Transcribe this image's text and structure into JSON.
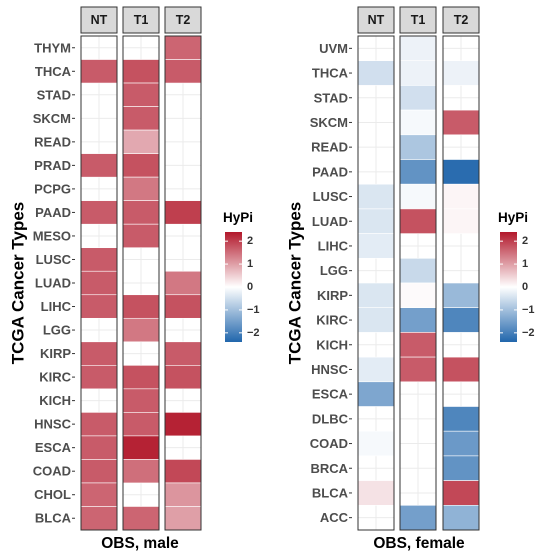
{
  "colors": {
    "low": "#2166ac",
    "mid": "#ffffff",
    "high": "#b2182b"
  },
  "legend": {
    "title": "HyPi",
    "ticks": [
      2,
      1,
      0,
      -1,
      -2
    ],
    "tick_labels": [
      "2",
      "1",
      "0",
      "−1",
      "−2"
    ]
  },
  "chart_data": [
    {
      "type": "heatmap",
      "ylabel": "TCGA Cancer Types",
      "xlabel": "OBS, male",
      "facets": [
        "NT",
        "T1",
        "T2"
      ],
      "categories": [
        "THYM",
        "THCA",
        "STAD",
        "SKCM",
        "READ",
        "PRAD",
        "PCPG",
        "PAAD",
        "MESO",
        "LUSC",
        "LUAD",
        "LIHC",
        "LGG",
        "KIRP",
        "KIRC",
        "KICH",
        "HNSC",
        "ESCA",
        "COAD",
        "CHOL",
        "BLCA"
      ],
      "color_range": [
        -2.4,
        2.4
      ],
      "series": [
        {
          "name": "NT",
          "values": [
            null,
            1.7,
            null,
            null,
            null,
            1.7,
            null,
            1.7,
            null,
            1.7,
            1.7,
            1.7,
            null,
            1.7,
            1.7,
            null,
            1.7,
            1.7,
            1.7,
            1.6,
            1.6
          ]
        },
        {
          "name": "T1",
          "values": [
            null,
            1.8,
            1.7,
            1.7,
            0.9,
            1.8,
            1.4,
            1.7,
            1.7,
            null,
            null,
            1.8,
            1.4,
            null,
            1.8,
            1.7,
            1.7,
            2.3,
            1.5,
            null,
            1.6
          ]
        },
        {
          "name": "T2",
          "values": [
            1.6,
            1.7,
            null,
            null,
            null,
            null,
            null,
            2.0,
            null,
            null,
            1.4,
            1.8,
            null,
            1.7,
            1.8,
            null,
            2.3,
            null,
            1.9,
            1.1,
            1.0
          ]
        }
      ]
    },
    {
      "type": "heatmap",
      "ylabel": "TCGA Cancer Types",
      "xlabel": "OBS, female",
      "facets": [
        "NT",
        "T1",
        "T2"
      ],
      "categories": [
        "UVM",
        "THCA",
        "STAD",
        "SKCM",
        "READ",
        "PAAD",
        "LUSC",
        "LUAD",
        "LIHC",
        "LGG",
        "KIRP",
        "KIRC",
        "KICH",
        "HNSC",
        "ESCA",
        "DLBC",
        "COAD",
        "BRCA",
        "BLCA",
        "ACC"
      ],
      "color_range": [
        -2.4,
        2.4
      ],
      "series": [
        {
          "name": "NT",
          "values": [
            null,
            -0.5,
            null,
            null,
            null,
            null,
            -0.4,
            -0.4,
            -0.3,
            null,
            -0.4,
            -0.4,
            null,
            -0.3,
            -1.4,
            null,
            -0.1,
            null,
            0.3,
            null
          ]
        },
        {
          "name": "T1",
          "values": [
            -0.2,
            -0.2,
            -0.5,
            -0.1,
            -0.9,
            -1.7,
            -0.1,
            1.8,
            null,
            -0.6,
            0.05,
            -1.5,
            1.7,
            1.7,
            null,
            null,
            null,
            null,
            null,
            -1.5
          ]
        },
        {
          "name": "T2",
          "values": [
            null,
            -0.2,
            null,
            1.7,
            null,
            -2.3,
            0.1,
            0.1,
            null,
            null,
            -1.1,
            -1.9,
            null,
            1.8,
            null,
            -1.9,
            -1.6,
            -1.7,
            1.9,
            -1.2
          ]
        }
      ]
    }
  ]
}
